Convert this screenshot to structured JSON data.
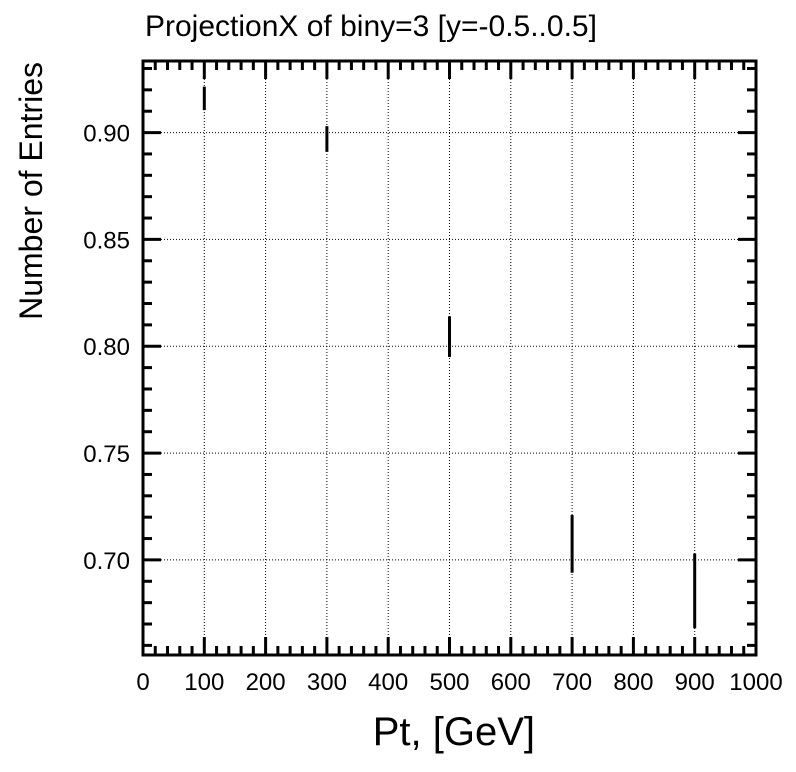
{
  "chart_data": {
    "type": "scatter",
    "title": "ProjectionX of biny=3 [y=-0.5..0.5]",
    "xlabel": "Pt, [GeV]",
    "ylabel": "Number of Entries",
    "xlim": [
      0,
      1000
    ],
    "ylim": [
      0.6555,
      0.9335
    ],
    "x_ticks": [
      0,
      100,
      200,
      300,
      400,
      500,
      600,
      700,
      800,
      900,
      1000
    ],
    "x_tick_labels": [
      "0",
      "100",
      "200",
      "300",
      "400",
      "500",
      "600",
      "700",
      "800",
      "900",
      "1000"
    ],
    "y_ticks": [
      0.7,
      0.75,
      0.8,
      0.85,
      0.9
    ],
    "y_tick_labels": [
      "0.70",
      "0.75",
      "0.80",
      "0.85",
      "0.90"
    ],
    "grid": true,
    "legend": "none",
    "series": [
      {
        "points": [
          {
            "x": 100,
            "y": 0.916,
            "y_err": 0.0055
          },
          {
            "x": 300,
            "y": 0.897,
            "y_err": 0.006
          },
          {
            "x": 500,
            "y": 0.8045,
            "y_err": 0.0095
          },
          {
            "x": 700,
            "y": 0.7075,
            "y_err": 0.0135
          },
          {
            "x": 900,
            "y": 0.6855,
            "y_err": 0.0175
          }
        ]
      }
    ],
    "colors": {
      "marker": "#000000",
      "axes": "#000000",
      "grid": "#000000"
    }
  }
}
